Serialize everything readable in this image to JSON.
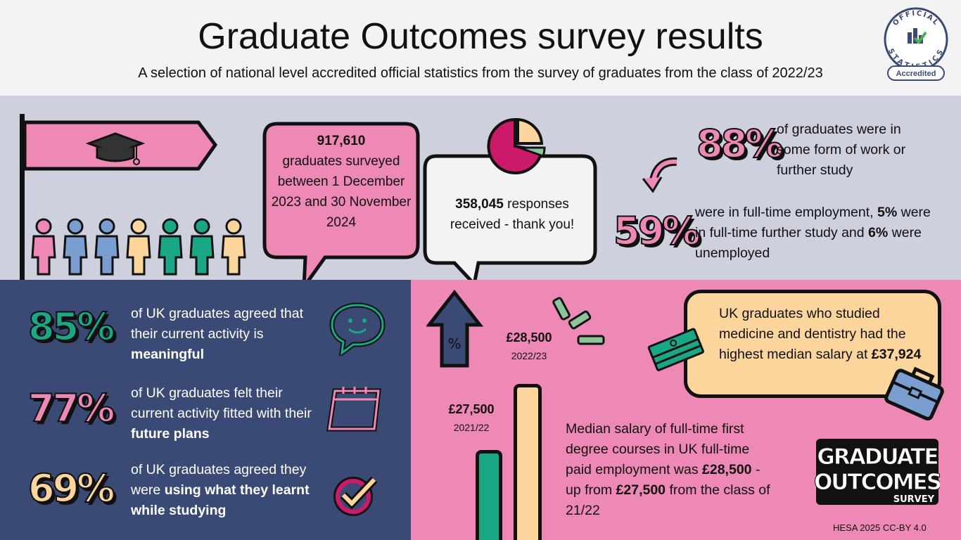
{
  "header": {
    "title": "Graduate Outcomes survey results",
    "subtitle": "A selection of national level accredited official statistics from the survey of graduates from the class of 2022/23",
    "seal": {
      "top": "OFFICIAL",
      "bottom": "STATISTICS",
      "badge": "Accredited"
    }
  },
  "surveyed": {
    "count": "917,610",
    "text": "graduates surveyed between 1 December 2023 and 30 November 2024"
  },
  "responses": {
    "count": "358,045",
    "text": "responses received - thank you!"
  },
  "work_study": {
    "pct": "88%",
    "text": "of graduates were in some form of work or further study"
  },
  "breakdown": {
    "pct": "59%",
    "text1": "were in full-time employment,",
    "study_pct": "5%",
    "text2": "were in full-time further study and",
    "unemp_pct": "6%",
    "text3": "were unemployed"
  },
  "meaningful": {
    "pct": "85%",
    "text": "of UK graduates agreed that their current activity is",
    "bold": "meaningful"
  },
  "future": {
    "pct": "77%",
    "text": "of UK graduates felt their current activity fitted with their",
    "bold": "future plans"
  },
  "using": {
    "pct": "69%",
    "text": "of UK graduates agreed they were",
    "bold": "using what they learnt while studying"
  },
  "salary": {
    "current_value": "£28,500",
    "current_year": "2022/23",
    "previous_value": "£27,500",
    "previous_year": "2021/22",
    "percent_symbol": "%",
    "desc1": "Median salary of full-time first degree courses in UK full-time paid employment was",
    "desc_bold1": "£28,500",
    "desc2": "- up from",
    "desc_bold2": "£27,500",
    "desc3": "from the class of 21/22"
  },
  "medicine": {
    "text": "UK graduates who studied medicine and dentistry had the highest median salary at",
    "amount": "£37,924"
  },
  "logo": {
    "line1": "GRADUATE",
    "line2": "OUTCOMES",
    "line3": "SURVEY"
  },
  "footer": {
    "credit": "HESA 2025 CC-BY 4.0"
  },
  "colors": {
    "pink": "#ee88b4",
    "navy": "#3a4a74",
    "lavender": "#cfd0dd",
    "teal": "#1aa785",
    "peach": "#fbd59b",
    "magenta": "#cc1a6a",
    "blue": "#7a9ed0",
    "green": "#8ec49a"
  }
}
